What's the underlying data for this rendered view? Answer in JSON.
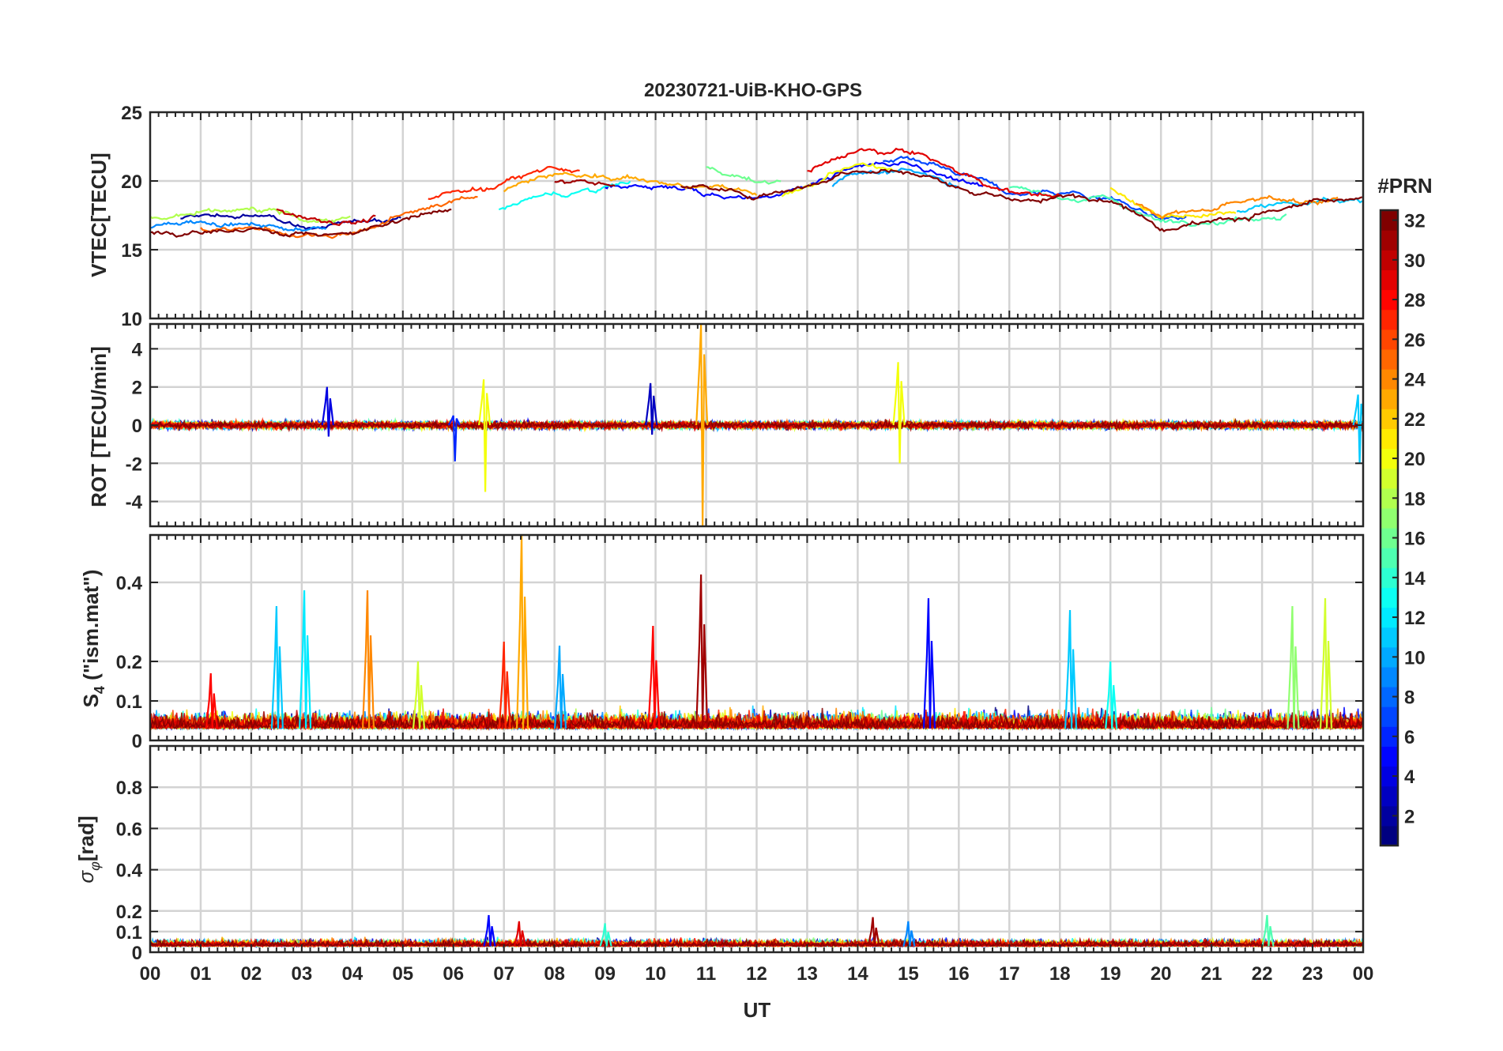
{
  "chart_data": {
    "type": "line",
    "title": "20230721-UiB-KHO-GPS",
    "xlabel": "UT",
    "x_ticks": [
      "00",
      "01",
      "02",
      "03",
      "04",
      "05",
      "06",
      "07",
      "08",
      "09",
      "10",
      "11",
      "12",
      "13",
      "14",
      "15",
      "16",
      "17",
      "18",
      "19",
      "20",
      "21",
      "22",
      "23",
      "00"
    ],
    "xlim_hours": [
      0,
      24
    ],
    "grid": true,
    "colormap": "jet",
    "colorbar": {
      "label": "#PRN",
      "range": [
        1,
        32
      ],
      "ticks": [
        "2",
        "4",
        "6",
        "8",
        "10",
        "12",
        "14",
        "16",
        "18",
        "20",
        "22",
        "24",
        "26",
        "28",
        "30",
        "32"
      ],
      "placement": "right"
    },
    "panels": [
      {
        "key": "vtec",
        "ylabel": "VTEC[TECU]",
        "ylim": [
          10,
          25
        ],
        "yticks": [
          10,
          15,
          20,
          25
        ],
        "baseline": [
          16.5,
          16.8,
          17,
          16.5,
          16.5,
          17.5,
          18.5,
          19.5,
          20.5,
          20.3,
          20,
          19.5,
          19,
          20,
          21.5,
          21.5,
          20,
          18.5,
          18.5,
          18.5,
          17,
          17.5,
          18,
          18.5,
          18.5
        ],
        "spread": 1.6,
        "series_tracks": [
          {
            "prn": 2,
            "start": 0.6,
            "end": 5.0
          },
          {
            "prn": 5,
            "start": 9.0,
            "end": 16.5
          },
          {
            "prn": 7,
            "start": 14.5,
            "end": 20.5
          },
          {
            "prn": 9,
            "start": 0.0,
            "end": 3.5
          },
          {
            "prn": 10,
            "start": 13.5,
            "end": 16.0
          },
          {
            "prn": 11,
            "start": 21.5,
            "end": 24.0
          },
          {
            "prn": 13,
            "start": 6.9,
            "end": 9.5
          },
          {
            "prn": 15,
            "start": 17.0,
            "end": 22.5
          },
          {
            "prn": 16,
            "start": 11.0,
            "end": 12.5
          },
          {
            "prn": 18,
            "start": 0.0,
            "end": 4.0
          },
          {
            "prn": 20,
            "start": 12.5,
            "end": 14.8
          },
          {
            "prn": 21,
            "start": 19.0,
            "end": 21.5
          },
          {
            "prn": 23,
            "start": 7.0,
            "end": 12.0
          },
          {
            "prn": 24,
            "start": 19.5,
            "end": 23.5
          },
          {
            "prn": 25,
            "start": 1.0,
            "end": 6.5
          },
          {
            "prn": 27,
            "start": 5.5,
            "end": 8.5
          },
          {
            "prn": 29,
            "start": 13.0,
            "end": 18.0
          },
          {
            "prn": 30,
            "start": 2.5,
            "end": 4.5
          },
          {
            "prn": 31,
            "start": 8.0,
            "end": 9.2
          },
          {
            "prn": 32,
            "start": 0.0,
            "end": 6.0
          },
          {
            "prn": 32,
            "start": 10.5,
            "end": 24.0
          }
        ]
      },
      {
        "key": "rot",
        "ylabel": "ROT [TECU/min]",
        "ylim": [
          -5.3,
          5.3
        ],
        "yticks": [
          -4,
          -2,
          0,
          2,
          4
        ],
        "noise_amplitude": 0.35,
        "spikes": [
          {
            "hour": 10.9,
            "min": -5.3,
            "max": 5.3,
            "prn": 23
          },
          {
            "hour": 6.6,
            "min": -3.5,
            "max": 2.4,
            "prn": 20
          },
          {
            "hour": 14.8,
            "min": -2.0,
            "max": 3.3,
            "prn": 20
          },
          {
            "hour": 9.9,
            "min": -0.5,
            "max": 2.2,
            "prn": 3
          },
          {
            "hour": 3.5,
            "min": -0.6,
            "max": 2.0,
            "prn": 4
          },
          {
            "hour": 6.0,
            "min": -1.9,
            "max": 0.5,
            "prn": 6
          },
          {
            "hour": 23.9,
            "min": -2.0,
            "max": 1.6,
            "prn": 11
          }
        ]
      },
      {
        "key": "s4",
        "ylabel": "S4 (\"ism.mat\")",
        "ylabel_main": "S",
        "ylabel_sub": "4",
        "ylabel_rest": " (\"ism.mat\")",
        "ylim": [
          0,
          0.52
        ],
        "yticks": [
          0,
          0.1,
          0.2,
          0.4
        ],
        "ytick_labels": [
          "0",
          "0.1",
          "0.2",
          "0.4"
        ],
        "noise_amplitude": 0.045,
        "spikes": [
          {
            "hour": 2.5,
            "max": 0.34,
            "prn": 11
          },
          {
            "hour": 3.05,
            "max": 0.38,
            "prn": 12
          },
          {
            "hour": 4.3,
            "max": 0.38,
            "prn": 24
          },
          {
            "hour": 7.35,
            "max": 0.52,
            "prn": 23
          },
          {
            "hour": 7.0,
            "max": 0.25,
            "prn": 27
          },
          {
            "hour": 9.95,
            "max": 0.29,
            "prn": 28
          },
          {
            "hour": 10.9,
            "max": 0.42,
            "prn": 31
          },
          {
            "hour": 15.4,
            "max": 0.36,
            "prn": 5
          },
          {
            "hour": 18.2,
            "max": 0.33,
            "prn": 11
          },
          {
            "hour": 22.6,
            "max": 0.34,
            "prn": 17
          },
          {
            "hour": 23.25,
            "max": 0.36,
            "prn": 19
          },
          {
            "hour": 8.1,
            "max": 0.24,
            "prn": 10
          },
          {
            "hour": 5.3,
            "max": 0.2,
            "prn": 19
          },
          {
            "hour": 1.2,
            "max": 0.17,
            "prn": 28
          },
          {
            "hour": 19.0,
            "max": 0.2,
            "prn": 13
          }
        ]
      },
      {
        "key": "sigma",
        "ylabel": "σφ[rad]",
        "ylabel_main": "σ",
        "ylabel_sub": "φ",
        "ylabel_rest": "[rad]",
        "ylim": [
          0,
          1.0
        ],
        "yticks": [
          0,
          0.1,
          0.2,
          0.4,
          0.6,
          0.8
        ],
        "ytick_labels": [
          "0",
          "0.1",
          "0.2",
          "0.4",
          "0.6",
          "0.8"
        ],
        "noise_amplitude": 0.035,
        "spikes": [
          {
            "hour": 6.7,
            "max": 0.18,
            "prn": 5
          },
          {
            "hour": 7.3,
            "max": 0.15,
            "prn": 29
          },
          {
            "hour": 14.3,
            "max": 0.17,
            "prn": 31
          },
          {
            "hour": 15.0,
            "max": 0.15,
            "prn": 9
          },
          {
            "hour": 22.1,
            "max": 0.18,
            "prn": 15
          },
          {
            "hour": 9.0,
            "max": 0.14,
            "prn": 14
          }
        ]
      }
    ]
  }
}
